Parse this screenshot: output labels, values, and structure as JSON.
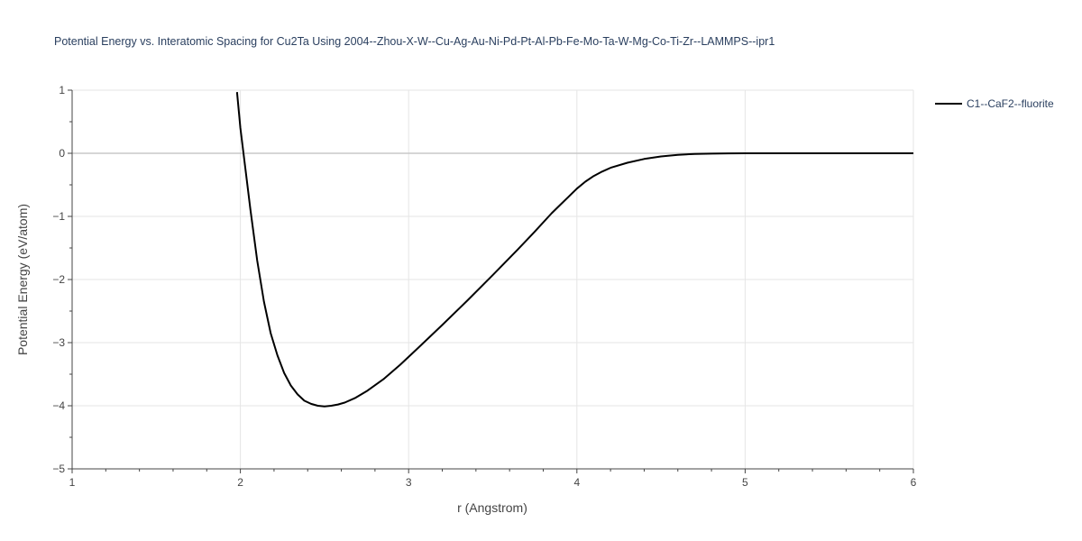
{
  "chart_data": {
    "type": "line",
    "title": "Potential Energy vs. Interatomic Spacing for Cu2Ta Using 2004--Zhou-X-W--Cu-Ag-Au-Ni-Pd-Pt-Al-Pb-Fe-Mo-Ta-W-Mg-Co-Ti-Zr--LAMMPS--ipr1",
    "xlabel": "r (Angstrom)",
    "ylabel": "Potential Energy (eV/atom)",
    "xlim": [
      1,
      6
    ],
    "ylim": [
      -5,
      1
    ],
    "x_ticks": [
      1,
      2,
      3,
      4,
      5,
      6
    ],
    "y_ticks": [
      1,
      0,
      -1,
      -2,
      -3,
      -4,
      -5
    ],
    "x_tick_labels": [
      "1",
      "2",
      "3",
      "4",
      "5",
      "6"
    ],
    "y_tick_labels": [
      "1",
      "0",
      "−1",
      "−2",
      "−3",
      "−4",
      "−5"
    ],
    "grid": true,
    "legend_position": "top-right",
    "series": [
      {
        "name": "C1--CaF2--fluorite",
        "color": "#000000",
        "x": [
          1.98,
          2.0,
          2.03,
          2.06,
          2.1,
          2.14,
          2.18,
          2.22,
          2.26,
          2.3,
          2.34,
          2.38,
          2.42,
          2.46,
          2.5,
          2.54,
          2.58,
          2.62,
          2.68,
          2.75,
          2.85,
          2.95,
          3.05,
          3.2,
          3.35,
          3.5,
          3.65,
          3.75,
          3.85,
          3.9,
          3.95,
          4.0,
          4.05,
          4.1,
          4.15,
          4.2,
          4.3,
          4.4,
          4.5,
          4.6,
          4.7,
          4.8,
          4.9,
          5.0,
          5.2,
          5.5,
          6.0
        ],
        "y": [
          0.97,
          0.4,
          -0.25,
          -0.9,
          -1.7,
          -2.35,
          -2.85,
          -3.2,
          -3.48,
          -3.68,
          -3.82,
          -3.92,
          -3.97,
          -4.0,
          -4.01,
          -4.0,
          -3.98,
          -3.95,
          -3.88,
          -3.77,
          -3.58,
          -3.35,
          -3.1,
          -2.72,
          -2.33,
          -1.93,
          -1.52,
          -1.24,
          -0.95,
          -0.82,
          -0.69,
          -0.56,
          -0.45,
          -0.36,
          -0.29,
          -0.23,
          -0.15,
          -0.09,
          -0.05,
          -0.025,
          -0.01,
          -0.005,
          -0.002,
          0.0,
          0.0,
          0.0,
          0.0
        ]
      }
    ]
  }
}
